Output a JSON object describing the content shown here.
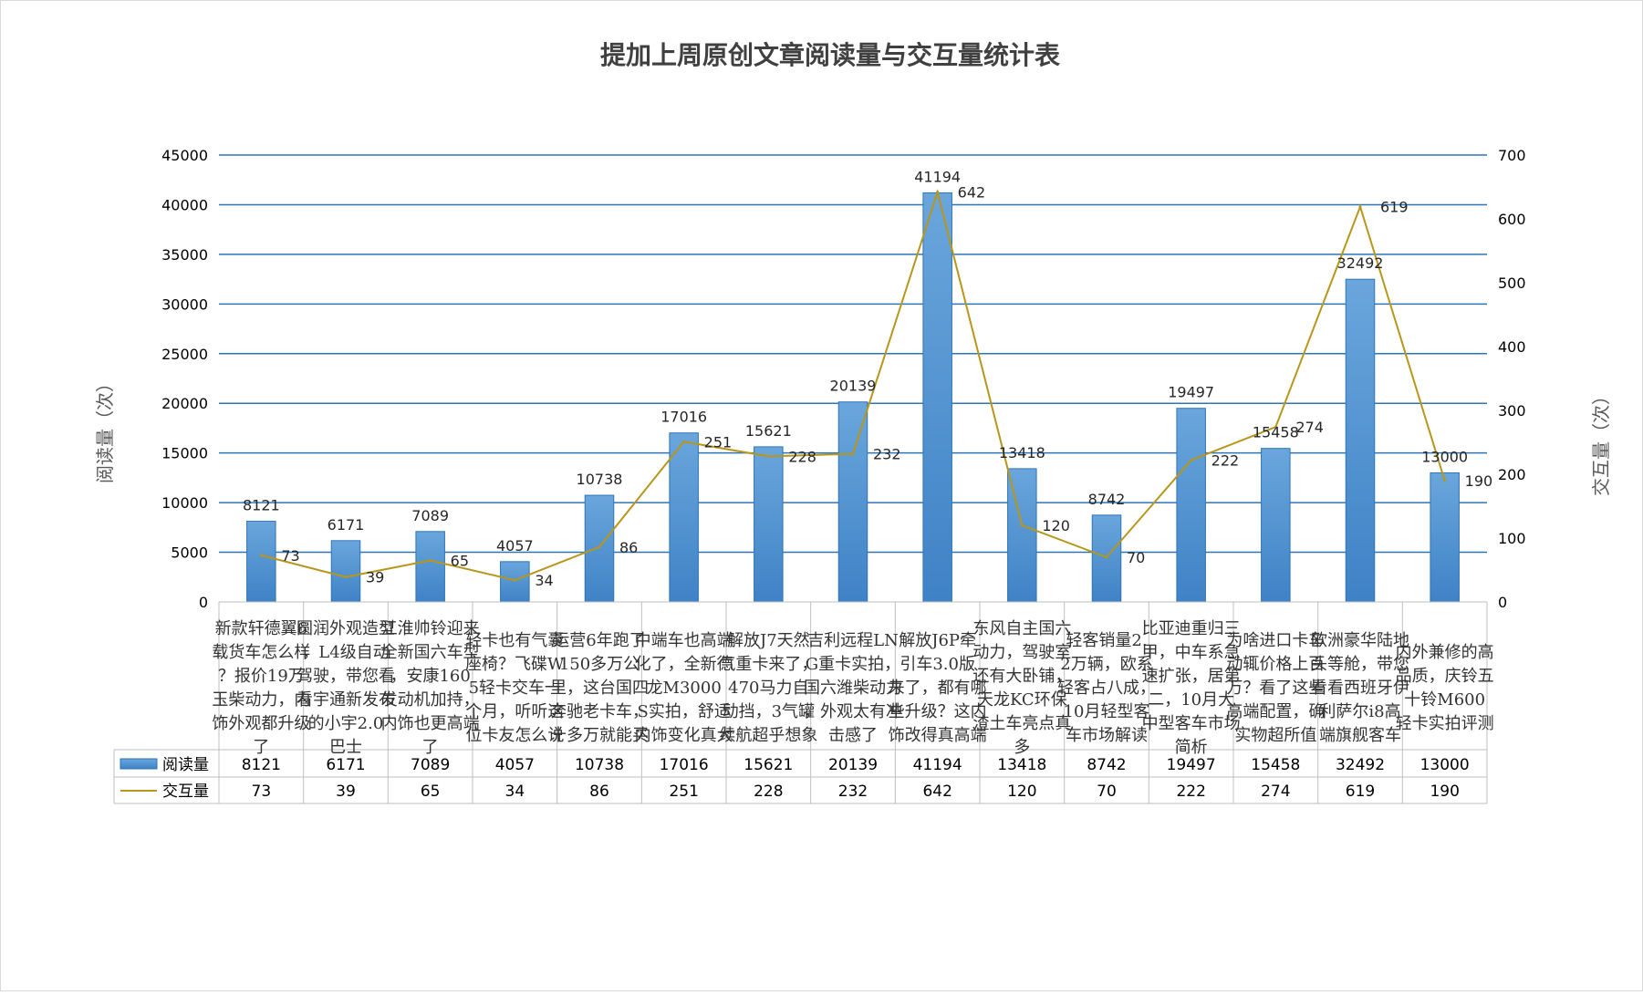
{
  "chart_data": {
    "type": "bar",
    "title": "提加上周原创文章阅读量与交互量统计表",
    "y_left_label": "阅读量（次）",
    "y_right_label": "交互量（次）",
    "y_left_range": [
      0,
      45000
    ],
    "y_left_ticks": [
      "0",
      "5000",
      "10000",
      "15000",
      "20000",
      "25000",
      "30000",
      "35000",
      "40000",
      "45000"
    ],
    "y_right_range": [
      0,
      700
    ],
    "y_right_ticks": [
      "0",
      "100",
      "200",
      "300",
      "400",
      "500",
      "600",
      "700"
    ],
    "grid": true,
    "legend": "data-table",
    "categories": [
      "新款轩德翼6载货车怎么样？报价19万玉柴动力，内饰外观都升级了",
      "圆润外观造型，L4级自动驾驶，带您看看宇通新发布的小宇2.0巴士",
      "江淮帅铃迎来全新国六车型，安康160发动机加持，内饰也更高端了",
      "轻卡也有气囊座椅？飞碟W5轻卡交车一个月，听听这位卡友怎么说",
      "运营6年跑了150多万公里，这台国四奔驰老卡车，十多万就能买",
      "中端车也高端化了，全新德龙M3000S实拍，舒适内饰变化真大",
      "解放J7天然气重卡来了，470马力自动挡，3气罐续航超乎想象",
      "吉利远程LNG重卡实拍，国六潍柴动力，外观太有冲击感了",
      "解放J6P牵引车3.0版来了，都有哪些升级？这内饰改得真高端",
      "东风自主国六动力，驾驶室还有大卧铺，天龙KC环保渣土车亮点真多",
      "轻客销量2.2万辆，欧系轻客占八成，10月轻型客车市场解读",
      "比亚迪重归三甲，中车系急速扩张，居第二，10月大中型客车市场简析",
      "为啥进口卡车动辄价格上百万？看了这些高端配置，确实物超所值",
      "欧洲豪华陆地头等舱，带您看看西班牙伊利萨尔i8高端旗舰客车",
      "内外兼修的高品质，庆铃五十铃M600轻卡实拍评测"
    ],
    "series": [
      {
        "name": "阅读量",
        "type": "bar",
        "axis": "left",
        "color": "#5b9bd5",
        "values": [
          8121,
          6171,
          7089,
          4057,
          10738,
          17016,
          15621,
          20139,
          41194,
          13418,
          8742,
          19497,
          15458,
          32492,
          13000
        ]
      },
      {
        "name": "交互量",
        "type": "line",
        "axis": "right",
        "color": "#b8961a",
        "values": [
          73,
          39,
          65,
          34,
          86,
          251,
          228,
          232,
          642,
          120,
          70,
          222,
          274,
          619,
          190
        ]
      }
    ]
  }
}
